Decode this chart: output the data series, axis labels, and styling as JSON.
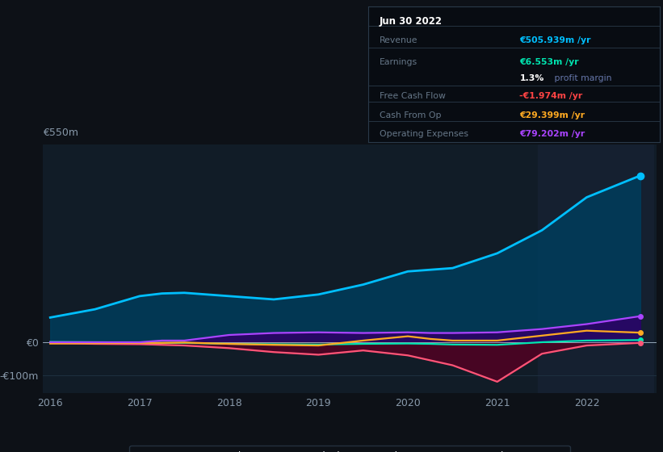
{
  "bg_color": "#0d1117",
  "plot_bg_color": "#111c27",
  "highlight_bg_color": "#152030",
  "grid_color": "#1e3040",
  "x_years": [
    2016,
    2016.5,
    2017,
    2017.25,
    2017.5,
    2018,
    2018.5,
    2019,
    2019.5,
    2020,
    2020.25,
    2020.5,
    2021,
    2021.5,
    2022,
    2022.6
  ],
  "revenue": [
    75,
    100,
    140,
    148,
    150,
    140,
    130,
    145,
    175,
    215,
    220,
    225,
    270,
    340,
    440,
    506
  ],
  "earnings": [
    1,
    0,
    -1,
    -2,
    -2,
    -5,
    -6,
    -7,
    -5,
    -4,
    -5,
    -7,
    -8,
    0,
    5,
    6.5
  ],
  "free_cash_flow": [
    -3,
    -5,
    -6,
    -8,
    -10,
    -18,
    -30,
    -38,
    -25,
    -40,
    -55,
    -70,
    -120,
    -35,
    -10,
    -2
  ],
  "cash_from_op": [
    -4,
    -3,
    -2,
    -2,
    -1,
    -5,
    -8,
    -10,
    5,
    18,
    10,
    5,
    5,
    20,
    35,
    29
  ],
  "operating_expenses": [
    0,
    0,
    0,
    5,
    5,
    22,
    28,
    30,
    28,
    30,
    28,
    28,
    30,
    40,
    55,
    79
  ],
  "revenue_color": "#00bfff",
  "earnings_color": "#00e5b0",
  "free_cash_flow_color": "#ff5577",
  "cash_from_op_color": "#ffaa22",
  "operating_expenses_color": "#aa44ff",
  "revenue_fill_color": "#003d5c",
  "opex_fill_color": "#2d0066",
  "fcf_fill_color": "#550022",
  "ylim_min": -155,
  "ylim_max": 600,
  "xticks": [
    2016,
    2017,
    2018,
    2019,
    2020,
    2021,
    2022
  ],
  "highlight_start": 2021.45,
  "info_box": {
    "date": "Jun 30 2022",
    "revenue_val": "€505.939m /yr",
    "earnings_val": "€6.553m /yr",
    "profit_margin_bold": "1.3%",
    "profit_margin_rest": " profit margin",
    "fcf_val": "-€1.974m /yr",
    "cfop_val": "€29.399m /yr",
    "opex_val": "€79.202m /yr"
  },
  "legend": [
    {
      "label": "Revenue",
      "color": "#00bfff"
    },
    {
      "label": "Earnings",
      "color": "#00e5b0"
    },
    {
      "label": "Free Cash Flow",
      "color": "#ff5577"
    },
    {
      "label": "Cash From Op",
      "color": "#ffaa22"
    },
    {
      "label": "Operating Expenses",
      "color": "#aa44ff"
    }
  ]
}
